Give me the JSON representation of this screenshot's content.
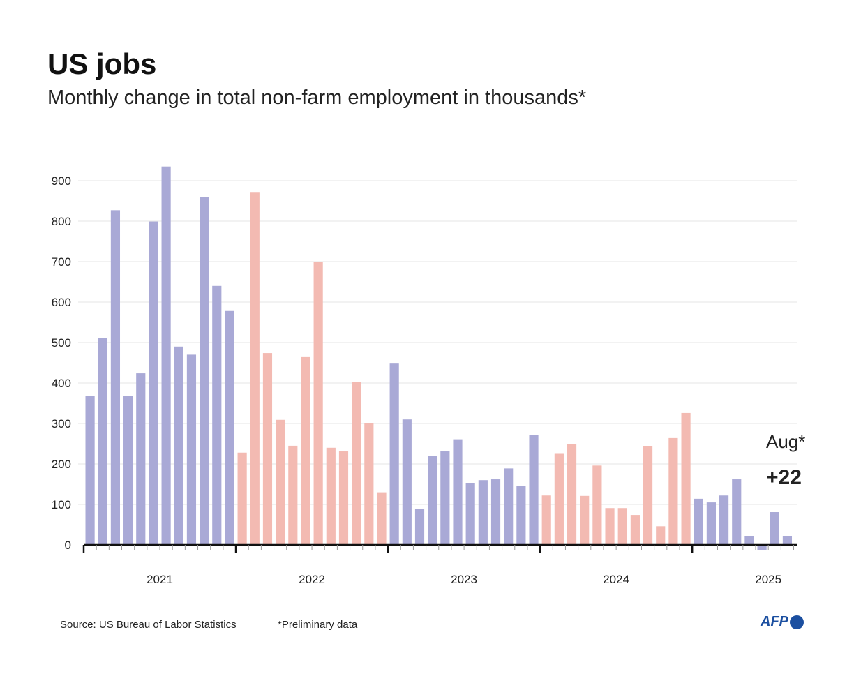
{
  "chart_data": {
    "type": "bar",
    "title": "US jobs",
    "subtitle": "Monthly change in total non-farm employment in thousands*",
    "ylim": [
      -30,
      950
    ],
    "yticks": [
      0,
      100,
      200,
      300,
      400,
      500,
      600,
      700,
      800,
      900
    ],
    "years": [
      "2021",
      "2022",
      "2023",
      "2024",
      "2025"
    ],
    "year_colors": [
      "#a9a9d6",
      "#f3bab2",
      "#a9a9d6",
      "#f3bab2",
      "#a9a9d6"
    ],
    "values": [
      [
        368,
        512,
        827,
        368,
        424,
        799,
        935,
        490,
        470,
        860,
        640,
        578
      ],
      [
        228,
        872,
        474,
        309,
        245,
        464,
        700,
        240,
        231,
        403,
        301,
        130
      ],
      [
        448,
        310,
        88,
        219,
        231,
        261,
        152,
        160,
        162,
        189,
        145,
        272
      ],
      [
        122,
        225,
        249,
        121,
        196,
        91,
        91,
        74,
        244,
        46,
        264,
        326
      ],
      [
        114,
        105,
        122,
        162,
        22,
        -13,
        81,
        22
      ]
    ],
    "annotation": {
      "label": "Aug*",
      "value": "+22"
    },
    "grid": true
  },
  "footer": {
    "source": "Source: US Bureau of Labor Statistics",
    "note": "*Preliminary data",
    "logo": "AFP"
  }
}
